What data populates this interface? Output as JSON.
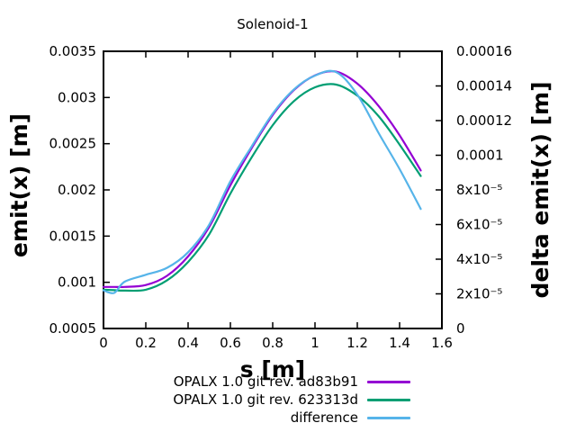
{
  "chart_data": {
    "type": "line",
    "title": "Solenoid-1",
    "xlabel": "s [m]",
    "ylabel_left": "emit(x) [m]",
    "ylabel_right": "delta emit(x) [m]",
    "grid": false,
    "legend_position": "below plot, right-aligned",
    "xlim": [
      0,
      1.6
    ],
    "y1lim": [
      0.0005,
      0.0035
    ],
    "y2lim": [
      0,
      0.00016
    ],
    "x_ticks": {
      "values": [
        0,
        0.2,
        0.4,
        0.6,
        0.8,
        1.0,
        1.2,
        1.4,
        1.6
      ],
      "labels": [
        "0",
        "0.2",
        "0.4",
        "0.6",
        "0.8",
        "1",
        "1.2",
        "1.4",
        "1.6"
      ]
    },
    "y1_ticks": {
      "values": [
        0.0005,
        0.001,
        0.0015,
        0.002,
        0.0025,
        0.003,
        0.0035
      ],
      "labels": [
        "0.0005",
        "0.001",
        "0.0015",
        "0.002",
        "0.0025",
        "0.003",
        "0.0035"
      ]
    },
    "y2_ticks": {
      "values": [
        0,
        2e-05,
        4e-05,
        6e-05,
        8e-05,
        0.0001,
        0.00012,
        0.00014,
        0.00016
      ],
      "labels": [
        "0",
        "2x10⁻⁵",
        "4x10⁻⁵",
        "6x10⁻⁵",
        "8x10⁻⁵",
        "0.0001",
        "0.00012",
        "0.00014",
        "0.00016"
      ]
    },
    "x": [
      0,
      0.05,
      0.1,
      0.2,
      0.3,
      0.4,
      0.5,
      0.6,
      0.7,
      0.8,
      0.9,
      1.0,
      1.1,
      1.2,
      1.3,
      1.4,
      1.5
    ],
    "series": [
      {
        "name": "OPALX 1.0 git rev. ad83b91",
        "color": "#9400d3",
        "axis": "left",
        "values": [
          0.00095,
          0.00095,
          0.00095,
          0.00097,
          0.00107,
          0.00128,
          0.0016,
          0.00205,
          0.00245,
          0.00281,
          0.00308,
          0.00324,
          0.00328,
          0.00315,
          0.00291,
          0.00259,
          0.00221
        ]
      },
      {
        "name": "OPALX 1.0 git rev. 623313d",
        "color": "#009e73",
        "axis": "left",
        "values": [
          0.00092,
          0.000915,
          0.00091,
          0.00092,
          0.00102,
          0.00122,
          0.00152,
          0.00196,
          0.00235,
          0.0027,
          0.00296,
          0.00311,
          0.00314,
          0.00302,
          0.0028,
          0.00249,
          0.00215
        ]
      },
      {
        "name": "difference",
        "color": "#56b4e9",
        "axis": "right",
        "values": [
          2.2e-05,
          2.05e-05,
          2.7e-05,
          3.1e-05,
          3.5e-05,
          4.4e-05,
          6e-05,
          8.5e-05,
          0.000105,
          0.000124,
          0.000138,
          0.000146,
          0.000148,
          0.000135,
          0.000113,
          9.2e-05,
          6.9e-05
        ]
      }
    ],
    "colors": {
      "axis": "#000000",
      "text": "#000000",
      "background": "#ffffff"
    }
  }
}
